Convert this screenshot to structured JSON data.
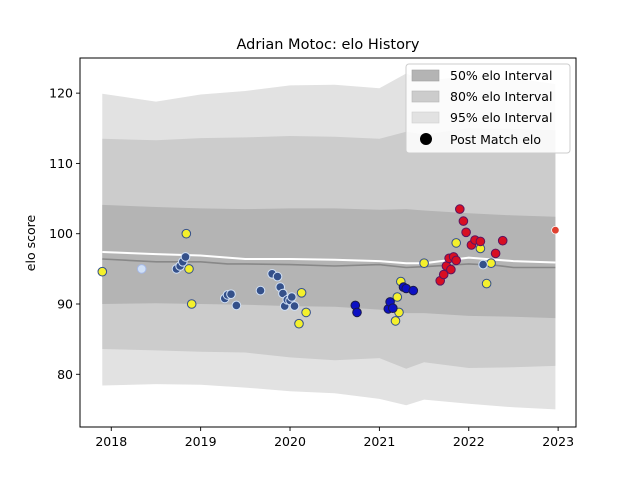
{
  "chart_data": {
    "type": "scatter",
    "title": "Adrian Motoc: elo History",
    "xlabel": "",
    "ylabel": "elo score",
    "xlim": [
      2017.65,
      2023.2
    ],
    "ylim": [
      72.5,
      125
    ],
    "x_ticks": [
      2018,
      2019,
      2020,
      2021,
      2022,
      2023
    ],
    "x_tick_labels": [
      "2018",
      "2019",
      "2020",
      "2021",
      "2022",
      "2023"
    ],
    "y_ticks": [
      80,
      90,
      100,
      110,
      120
    ],
    "y_tick_labels": [
      "80",
      "90",
      "100",
      "110",
      "120"
    ],
    "legend": {
      "position": "top-right",
      "entries": [
        "50% elo Interval",
        "80% elo Interval",
        "95% elo Interval",
        "Post Match elo"
      ]
    },
    "colors": {
      "band95": "#e2e2e2",
      "band80": "#cccccc",
      "band50": "#b4b4b4",
      "mean_line": "#ffffff",
      "median_line": "#888888",
      "pale_blue": "#d0e0f6",
      "steel_blue": "#34508a",
      "royal_blue": "#0c10c4",
      "red": "#d80e22",
      "yellow": "#f4f02c",
      "outline_light": "#a4b8e8",
      "outline_dark": "#1a1a4a",
      "outline_gold": "#c8b44c",
      "outline_purple": "#5a1460",
      "last_point": "#e04030"
    },
    "bands": {
      "x": [
        2017.9,
        2018.5,
        2019.0,
        2019.5,
        2020.0,
        2020.5,
        2021.0,
        2021.3,
        2021.5,
        2022.0,
        2022.5,
        2022.97
      ],
      "p95_upper": [
        119.9,
        118.8,
        119.8,
        120.3,
        121.1,
        121.2,
        120.7,
        122.8,
        121.7,
        122.5,
        122.1,
        121.3
      ],
      "p80_upper": [
        113.5,
        113.3,
        113.6,
        113.7,
        113.9,
        113.8,
        113.5,
        114.5,
        114.1,
        115.0,
        114.9,
        114.7
      ],
      "p50_upper": [
        104.1,
        103.8,
        103.6,
        103.5,
        103.6,
        103.6,
        103.4,
        103.5,
        103.3,
        102.9,
        102.6,
        102.4
      ],
      "p50_lower": [
        90.0,
        90.1,
        90.0,
        89.9,
        89.7,
        89.6,
        89.2,
        88.7,
        88.7,
        88.3,
        88.2,
        88.0
      ],
      "p80_lower": [
        83.6,
        83.4,
        83.2,
        83.1,
        82.4,
        82.0,
        82.3,
        80.8,
        81.7,
        80.9,
        81.0,
        81.2
      ],
      "p95_lower": [
        78.4,
        78.6,
        78.5,
        78.1,
        77.6,
        77.3,
        76.5,
        75.6,
        76.4,
        75.8,
        75.3,
        75.0
      ]
    },
    "mean_line": {
      "x": [
        2017.9,
        2018.5,
        2019.0,
        2019.3,
        2019.5,
        2020.0,
        2020.5,
        2021.0,
        2021.3,
        2021.5,
        2022.0,
        2022.3,
        2022.5,
        2022.97
      ],
      "y": [
        97.4,
        97.1,
        96.9,
        96.6,
        96.4,
        96.4,
        96.3,
        96.1,
        95.8,
        95.8,
        96.6,
        96.3,
        96.1,
        95.9
      ]
    },
    "median_line": {
      "x": [
        2017.9,
        2018.5,
        2019.0,
        2019.3,
        2019.5,
        2020.0,
        2020.5,
        2021.0,
        2021.3,
        2021.5,
        2022.0,
        2022.3,
        2022.5,
        2022.97
      ],
      "y": [
        96.4,
        96.0,
        96.0,
        95.7,
        95.7,
        95.6,
        95.4,
        95.6,
        95.2,
        95.3,
        95.7,
        95.5,
        95.2,
        95.2
      ]
    },
    "series": [
      {
        "name": "pale",
        "fill": "#d0e0f6",
        "stroke": "#a4b8e8",
        "x": [
          2018.34
        ],
        "y": [
          95.0
        ]
      },
      {
        "name": "yellow",
        "fill": "#f4f02c",
        "stroke": "#34508a",
        "x": [
          2017.9,
          2018.84,
          2018.87,
          2018.9,
          2020.1,
          2020.13,
          2020.18,
          2021.18,
          2021.2,
          2021.22,
          2021.24,
          2021.5,
          2021.86,
          2022.13,
          2022.2,
          2022.25
        ],
        "y": [
          94.6,
          100.0,
          95.0,
          90.0,
          87.2,
          91.6,
          88.8,
          87.6,
          91.0,
          88.8,
          93.2,
          95.8,
          98.7,
          97.9,
          92.9,
          95.8
        ]
      },
      {
        "name": "steel",
        "fill": "#34508a",
        "stroke": "#d0e0f6",
        "x": [
          2018.73,
          2018.77,
          2018.8,
          2018.83,
          2019.27,
          2019.3,
          2019.34,
          2019.4,
          2019.67,
          2019.8,
          2019.86,
          2019.89,
          2019.92,
          2019.94,
          2019.97,
          2020.0,
          2020.02,
          2020.05,
          2022.16
        ],
        "y": [
          95.0,
          95.4,
          96.0,
          96.7,
          90.8,
          91.3,
          91.4,
          89.8,
          91.9,
          94.3,
          93.9,
          92.4,
          91.5,
          89.7,
          90.6,
          90.5,
          91.0,
          89.7,
          95.6
        ]
      },
      {
        "name": "royal",
        "fill": "#0c10c4",
        "stroke": "#1a1a4a",
        "x": [
          2020.73,
          2020.75,
          2021.1,
          2021.12,
          2021.15,
          2021.27,
          2021.3,
          2021.38
        ],
        "y": [
          89.8,
          88.8,
          89.3,
          90.3,
          89.4,
          92.4,
          92.2,
          91.9
        ]
      },
      {
        "name": "red",
        "fill": "#d80e22",
        "stroke": "#5a1460",
        "x": [
          2021.68,
          2021.72,
          2021.75,
          2021.78,
          2021.8,
          2021.83,
          2021.86,
          2021.9,
          2021.94,
          2021.97,
          2022.03,
          2022.07,
          2022.13,
          2022.3,
          2022.38
        ],
        "y": [
          93.3,
          94.2,
          95.4,
          96.5,
          94.9,
          96.7,
          96.2,
          103.5,
          101.8,
          100.2,
          98.4,
          99.1,
          98.9,
          97.2,
          99.0
        ]
      }
    ],
    "last_point": {
      "x": 2022.97,
      "y": 100.5
    }
  }
}
